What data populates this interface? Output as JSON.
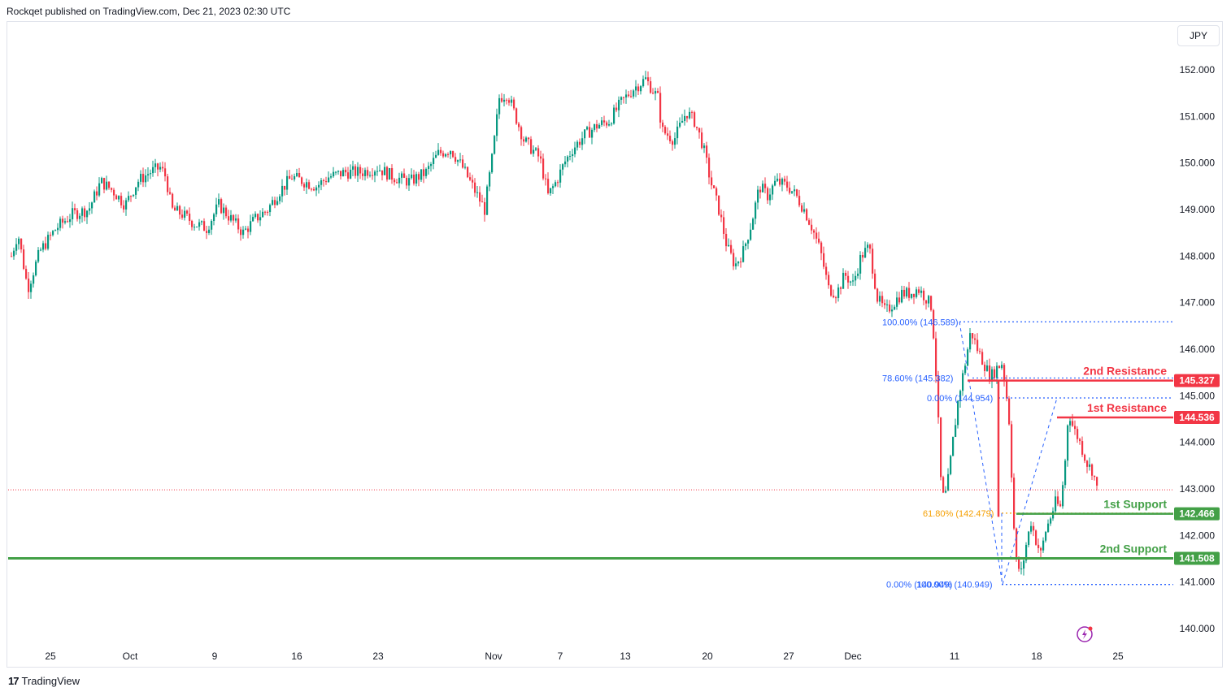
{
  "header": {
    "publisher_line": "Rockqet published on TradingView.com, Dec 21, 2023 02:30 UTC"
  },
  "currency_button": "JPY",
  "footer": {
    "logo_glyph": "17",
    "brand": "TradingView"
  },
  "colors": {
    "up": "#089981",
    "down": "#f23645",
    "support": "#43a047",
    "fib": "#2962ff",
    "fib_golden": "#f59f00"
  },
  "chart_data": {
    "type": "candlestick",
    "instrument_quote": "JPY",
    "ylim": [
      139.65,
      152.75
    ],
    "y_ticks": [
      "140.000",
      "141.000",
      "142.000",
      "143.000",
      "144.000",
      "145.000",
      "146.000",
      "147.000",
      "148.000",
      "149.000",
      "150.000",
      "151.000",
      "152.000"
    ],
    "x_ticks": [
      "25",
      "Oct",
      "9",
      "16",
      "23",
      "Nov",
      "7",
      "13",
      "20",
      "27",
      "Dec",
      "11",
      "18",
      "25"
    ],
    "close_path": [
      [
        0,
        148.0
      ],
      [
        8,
        148.5
      ],
      [
        20,
        147.3
      ],
      [
        35,
        148.1
      ],
      [
        55,
        148.6
      ],
      [
        75,
        148.9
      ],
      [
        95,
        149.0
      ],
      [
        110,
        149.6
      ],
      [
        125,
        149.4
      ],
      [
        140,
        149.1
      ],
      [
        155,
        149.6
      ],
      [
        170,
        149.8
      ],
      [
        183,
        149.9
      ],
      [
        190,
        149.7
      ],
      [
        197,
        149.0
      ],
      [
        210,
        148.9
      ],
      [
        225,
        148.7
      ],
      [
        240,
        148.6
      ],
      [
        255,
        149.1
      ],
      [
        270,
        148.8
      ],
      [
        285,
        148.5
      ],
      [
        300,
        148.8
      ],
      [
        315,
        149.0
      ],
      [
        330,
        149.4
      ],
      [
        345,
        149.7
      ],
      [
        360,
        149.6
      ],
      [
        375,
        149.5
      ],
      [
        390,
        149.7
      ],
      [
        410,
        149.8
      ],
      [
        430,
        149.8
      ],
      [
        450,
        149.9
      ],
      [
        470,
        149.7
      ],
      [
        490,
        149.6
      ],
      [
        510,
        149.8
      ],
      [
        525,
        150.2
      ],
      [
        540,
        150.3
      ],
      [
        555,
        149.9
      ],
      [
        570,
        149.4
      ],
      [
        582,
        149.0
      ],
      [
        592,
        150.2
      ],
      [
        600,
        151.4
      ],
      [
        610,
        151.5
      ],
      [
        620,
        151.0
      ],
      [
        630,
        150.5
      ],
      [
        640,
        150.3
      ],
      [
        650,
        150.1
      ],
      [
        660,
        149.3
      ],
      [
        670,
        149.6
      ],
      [
        680,
        150.0
      ],
      [
        690,
        150.3
      ],
      [
        705,
        150.6
      ],
      [
        720,
        150.8
      ],
      [
        735,
        150.9
      ],
      [
        750,
        151.3
      ],
      [
        765,
        151.6
      ],
      [
        780,
        151.8
      ],
      [
        795,
        151.4
      ],
      [
        800,
        150.7
      ],
      [
        815,
        150.5
      ],
      [
        830,
        151.1
      ],
      [
        840,
        150.9
      ],
      [
        850,
        150.4
      ],
      [
        860,
        149.6
      ],
      [
        870,
        149.0
      ],
      [
        880,
        148.2
      ],
      [
        890,
        147.8
      ],
      [
        900,
        148.1
      ],
      [
        910,
        148.7
      ],
      [
        920,
        149.5
      ],
      [
        930,
        149.3
      ],
      [
        940,
        149.6
      ],
      [
        955,
        149.5
      ],
      [
        965,
        149.3
      ],
      [
        975,
        149.0
      ],
      [
        985,
        148.6
      ],
      [
        995,
        148.1
      ],
      [
        1005,
        147.3
      ],
      [
        1015,
        147.2
      ],
      [
        1025,
        147.6
      ],
      [
        1035,
        147.4
      ],
      [
        1045,
        148.0
      ],
      [
        1055,
        148.2
      ],
      [
        1065,
        147.1
      ],
      [
        1075,
        146.8
      ],
      [
        1085,
        147.0
      ],
      [
        1095,
        147.2
      ],
      [
        1105,
        147.2
      ],
      [
        1115,
        147.3
      ],
      [
        1125,
        147.1
      ],
      [
        1132,
        146.9
      ],
      [
        1138,
        145.2
      ],
      [
        1144,
        142.8
      ],
      [
        1150,
        142.9
      ],
      [
        1157,
        143.9
      ],
      [
        1165,
        145.0
      ],
      [
        1172,
        145.6
      ],
      [
        1180,
        146.4
      ],
      [
        1188,
        146.0
      ],
      [
        1196,
        145.7
      ],
      [
        1204,
        145.4
      ],
      [
        1212,
        145.6
      ],
      [
        1218,
        145.7
      ],
      [
        1222,
        145.3
      ],
      [
        1228,
        144.3
      ],
      [
        1232,
        142.4
      ],
      [
        1236,
        141.4
      ],
      [
        1242,
        141.2
      ],
      [
        1248,
        141.8
      ],
      [
        1254,
        142.3
      ],
      [
        1260,
        141.9
      ],
      [
        1266,
        141.6
      ],
      [
        1272,
        142.1
      ],
      [
        1278,
        142.4
      ],
      [
        1284,
        142.7
      ],
      [
        1290,
        142.6
      ],
      [
        1296,
        143.6
      ],
      [
        1300,
        144.7
      ],
      [
        1306,
        144.3
      ],
      [
        1312,
        144.1
      ],
      [
        1318,
        143.8
      ],
      [
        1324,
        143.5
      ],
      [
        1330,
        143.4
      ],
      [
        1336,
        142.9
      ]
    ],
    "current_price_line": 142.98,
    "levels": [
      {
        "label": "2nd Resistance",
        "value": "145.327",
        "kind": "resistance"
      },
      {
        "label": "1st Resistance",
        "value": "144.536",
        "kind": "resistance"
      },
      {
        "label": "1st Support",
        "value": "142.466",
        "kind": "support"
      },
      {
        "label": "2nd Support",
        "value": "141.508",
        "kind": "support"
      }
    ],
    "fib_labels": [
      {
        "text": "100.00% (146.589)",
        "value": 146.589
      },
      {
        "text": "78.60% (145.382)",
        "value": 145.382
      },
      {
        "text": "0.00% (144.954)",
        "value": 144.954
      },
      {
        "text": "61.80% (142.479)",
        "value": 142.479
      },
      {
        "text": "0.00% (140.949)",
        "value": 140.949
      },
      {
        "text": "100.00% (140.949)",
        "value": 140.949
      }
    ]
  }
}
